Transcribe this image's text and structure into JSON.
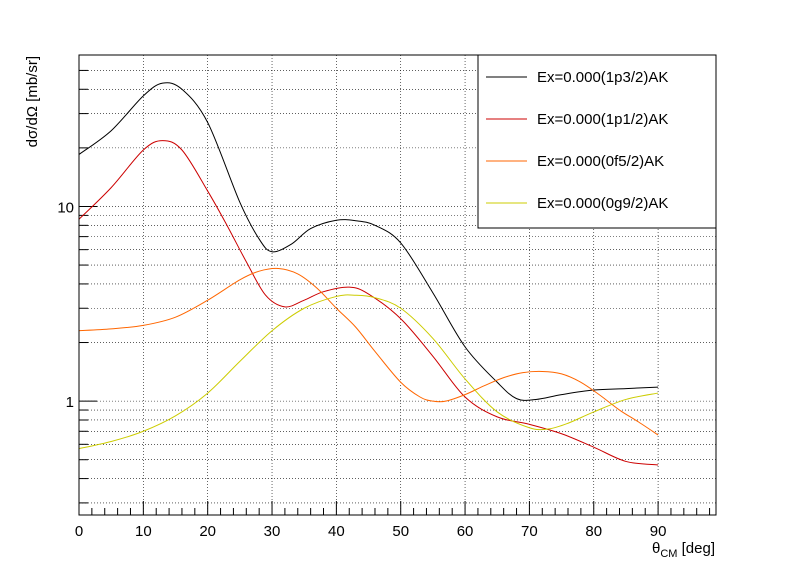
{
  "chart_data": {
    "type": "line",
    "xlabel": "θ",
    "xlabel_sub": "CM",
    "xlabel_unit": " [deg]",
    "ylabel": "dσ/dΩ [mb/sr]",
    "xlim": [
      0,
      99
    ],
    "ylim": [
      0.26,
      60
    ],
    "yscale": "log",
    "grid": true,
    "legend_position": "top-right",
    "x_ticks": [
      "0",
      "10",
      "20",
      "30",
      "40",
      "50",
      "60",
      "70",
      "80",
      "90"
    ],
    "y_ticks": [
      "1",
      "10"
    ],
    "series": [
      {
        "name": "Ex=0.000(1p3/2)AK",
        "color": "#000000",
        "x": [
          0,
          5,
          10,
          13,
          16,
          20,
          25,
          28,
          30,
          33,
          36,
          40,
          43,
          46,
          50,
          55,
          60,
          65,
          68,
          71,
          75,
          80,
          85,
          90
        ],
        "y": [
          18.5,
          24.5,
          37,
          43,
          40,
          27,
          10.5,
          6.8,
          5.85,
          6.4,
          7.7,
          8.5,
          8.45,
          8.0,
          6.5,
          3.6,
          1.9,
          1.25,
          1.03,
          1.02,
          1.08,
          1.14,
          1.16,
          1.18
        ]
      },
      {
        "name": "Ex=0.000(1p1/2)AK",
        "color": "#cc0000",
        "x": [
          0,
          5,
          10,
          13,
          16,
          20,
          23,
          26,
          29,
          32,
          35,
          38,
          42,
          45,
          50,
          55,
          60,
          65,
          70,
          75,
          80,
          85,
          90
        ],
        "y": [
          8.6,
          12.5,
          19.5,
          21.8,
          19.5,
          12,
          8,
          5.2,
          3.5,
          3.05,
          3.3,
          3.65,
          3.85,
          3.55,
          2.65,
          1.7,
          1.05,
          0.83,
          0.76,
          0.68,
          0.58,
          0.49,
          0.47
        ]
      },
      {
        "name": "Ex=0.000(0f5/2)AK",
        "color": "#ff6600",
        "x": [
          0,
          5,
          10,
          15,
          20,
          25,
          28,
          31,
          34,
          37,
          40,
          43,
          46,
          50,
          53,
          55,
          57,
          60,
          63,
          66,
          69,
          72,
          75,
          78,
          81,
          84,
          87,
          90
        ],
        "y": [
          2.3,
          2.35,
          2.45,
          2.7,
          3.3,
          4.2,
          4.65,
          4.8,
          4.5,
          3.8,
          3.0,
          2.4,
          1.8,
          1.25,
          1.05,
          1.0,
          1.0,
          1.08,
          1.2,
          1.32,
          1.4,
          1.42,
          1.38,
          1.25,
          1.07,
          0.9,
          0.78,
          0.67
        ]
      },
      {
        "name": "Ex=0.000(0g9/2)AK",
        "color": "#cccc00",
        "x": [
          0,
          5,
          10,
          15,
          20,
          25,
          30,
          35,
          40,
          43,
          46,
          50,
          55,
          60,
          65,
          70,
          73,
          76,
          80,
          85,
          90
        ],
        "y": [
          0.57,
          0.62,
          0.7,
          0.84,
          1.1,
          1.6,
          2.3,
          3.0,
          3.45,
          3.5,
          3.4,
          3.0,
          2.1,
          1.3,
          0.88,
          0.73,
          0.72,
          0.77,
          0.88,
          1.02,
          1.1
        ]
      }
    ]
  }
}
